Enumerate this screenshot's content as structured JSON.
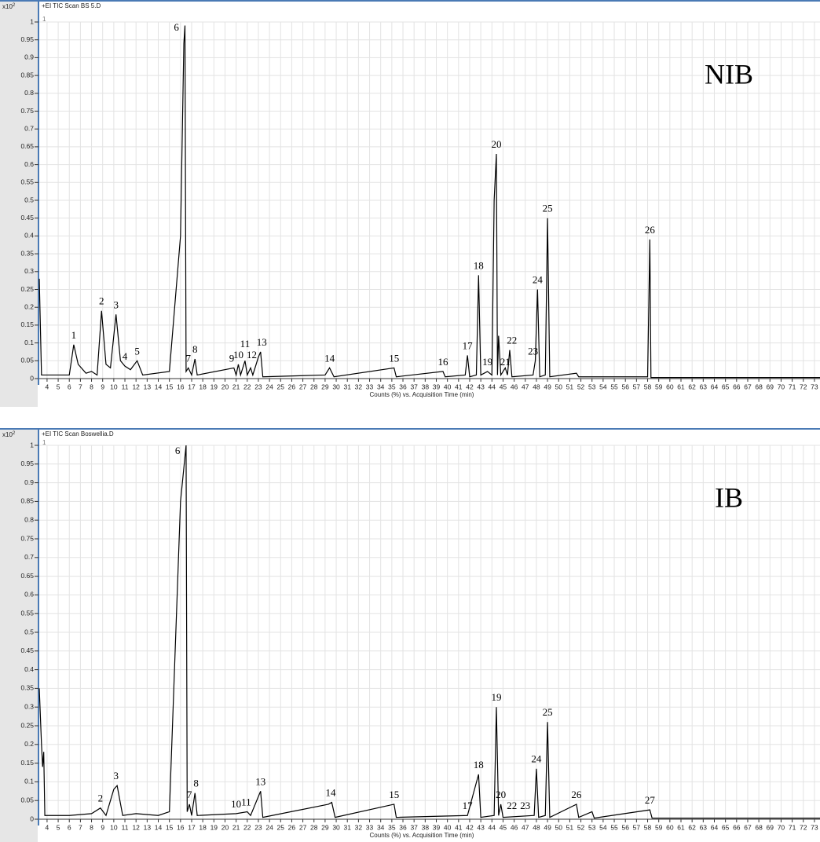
{
  "chart_data": [
    {
      "type": "line",
      "header": "+EI TIC Scan BS 5.D",
      "scale_label": "x10",
      "scale_exponent": "2",
      "trace_tag": "1",
      "label": "NIB",
      "xlabel": "Counts (%) vs. Acquisition Time (min)",
      "color": "#000000",
      "grid": true,
      "xlim": [
        3.3,
        73.5
      ],
      "ylim": [
        0,
        1
      ],
      "xticks": [
        4,
        5,
        6,
        7,
        8,
        9,
        10,
        11,
        12,
        13,
        14,
        15,
        16,
        17,
        18,
        19,
        20,
        21,
        22,
        23,
        24,
        25,
        26,
        27,
        28,
        29,
        30,
        31,
        32,
        33,
        34,
        35,
        36,
        37,
        38,
        39,
        40,
        41,
        42,
        43,
        44,
        45,
        46,
        47,
        48,
        49,
        50,
        51,
        52,
        53,
        54,
        55,
        56,
        57,
        58,
        59,
        60,
        61,
        62,
        63,
        64,
        65,
        66,
        67,
        68,
        69,
        70,
        71,
        72,
        73
      ],
      "yticks": [
        0,
        0.05,
        0.1,
        0.15,
        0.2,
        0.25,
        0.3,
        0.35,
        0.4,
        0.45,
        0.5,
        0.55,
        0.6,
        0.65,
        0.7,
        0.75,
        0.8,
        0.85,
        0.9,
        0.95,
        1
      ],
      "x": [
        3.3,
        3.5,
        6,
        6.4,
        6.8,
        7.5,
        8,
        8.5,
        8.9,
        9.3,
        9.7,
        10.2,
        10.6,
        11,
        11.5,
        12.1,
        12.6,
        15,
        16,
        16.3,
        16.4,
        16.5,
        16.7,
        17,
        17.3,
        17.5,
        20.8,
        21,
        21.2,
        21.4,
        21.8,
        22,
        22.3,
        22.5,
        23,
        23.2,
        23.4,
        29,
        29.4,
        29.8,
        35.2,
        35.4,
        39.6,
        39.8,
        41.6,
        41.8,
        42,
        42.6,
        42.8,
        43,
        43.6,
        44,
        44.2,
        44.4,
        44.5,
        44.6,
        44.8,
        45.2,
        45.4,
        45.6,
        45.8,
        47.7,
        47.9,
        48.1,
        48.3,
        48.8,
        49,
        49.2,
        51.6,
        51.8,
        58,
        58.2,
        58.3,
        73.5
      ],
      "values": [
        0.28,
        0.01,
        0.01,
        0.095,
        0.04,
        0.015,
        0.02,
        0.01,
        0.19,
        0.04,
        0.03,
        0.18,
        0.05,
        0.035,
        0.025,
        0.05,
        0.01,
        0.02,
        0.4,
        0.94,
        0.99,
        0.02,
        0.03,
        0.01,
        0.055,
        0.01,
        0.03,
        0.01,
        0.04,
        0.01,
        0.05,
        0.01,
        0.03,
        0.01,
        0.06,
        0.075,
        0.005,
        0.01,
        0.03,
        0.005,
        0.03,
        0.005,
        0.02,
        0.005,
        0.01,
        0.065,
        0.005,
        0.01,
        0.29,
        0.01,
        0.02,
        0.01,
        0.5,
        0.63,
        0.01,
        0.12,
        0.01,
        0.03,
        0.01,
        0.08,
        0.005,
        0.01,
        0.05,
        0.25,
        0.005,
        0.01,
        0.45,
        0.005,
        0.015,
        0.005,
        0.005,
        0.39,
        0.003,
        0.003
      ],
      "peak_labels": [
        {
          "text": "1",
          "x": 6.4,
          "y": 0.095
        },
        {
          "text": "2",
          "x": 8.9,
          "y": 0.19
        },
        {
          "text": "3",
          "x": 10.2,
          "y": 0.18
        },
        {
          "text": "4",
          "x": 11,
          "y": 0.035
        },
        {
          "text": "5",
          "x": 12.1,
          "y": 0.05
        },
        {
          "text": "6",
          "x": 16.2,
          "y": 0.99
        },
        {
          "text": "7",
          "x": 16.7,
          "y": 0.03
        },
        {
          "text": "8",
          "x": 17.3,
          "y": 0.055
        },
        {
          "text": "9",
          "x": 20.6,
          "y": 0.03
        },
        {
          "text": "10",
          "x": 21.2,
          "y": 0.04
        },
        {
          "text": "11",
          "x": 21.8,
          "y": 0.07
        },
        {
          "text": "12",
          "x": 22.4,
          "y": 0.04
        },
        {
          "text": "13",
          "x": 23.3,
          "y": 0.075
        },
        {
          "text": "14",
          "x": 29.4,
          "y": 0.03
        },
        {
          "text": "15",
          "x": 35.2,
          "y": 0.03
        },
        {
          "text": "16",
          "x": 39.6,
          "y": 0.02
        },
        {
          "text": "17",
          "x": 41.8,
          "y": 0.065
        },
        {
          "text": "18",
          "x": 42.8,
          "y": 0.29
        },
        {
          "text": "19",
          "x": 43.6,
          "y": 0.02
        },
        {
          "text": "20",
          "x": 44.4,
          "y": 0.63
        },
        {
          "text": "21",
          "x": 45.2,
          "y": 0.02
        },
        {
          "text": "22",
          "x": 45.8,
          "y": 0.08
        },
        {
          "text": "23",
          "x": 47.7,
          "y": 0.05
        },
        {
          "text": "24",
          "x": 48.1,
          "y": 0.25
        },
        {
          "text": "25",
          "x": 49,
          "y": 0.45
        },
        {
          "text": "26",
          "x": 58.2,
          "y": 0.39
        }
      ]
    },
    {
      "type": "line",
      "header": "+EI TIC Scan Boswellia.D",
      "scale_label": "x10",
      "scale_exponent": "2",
      "trace_tag": "1",
      "label": "IB",
      "xlabel": "Counts (%) vs. Acquisition Time (min)",
      "color": "#000000",
      "grid": true,
      "xlim": [
        3.3,
        73.5
      ],
      "ylim": [
        0,
        1
      ],
      "xticks": [
        4,
        5,
        6,
        7,
        8,
        9,
        10,
        11,
        12,
        13,
        14,
        15,
        16,
        17,
        18,
        19,
        20,
        21,
        22,
        23,
        24,
        25,
        26,
        27,
        28,
        29,
        30,
        31,
        32,
        33,
        34,
        35,
        36,
        37,
        38,
        39,
        40,
        41,
        42,
        43,
        44,
        45,
        46,
        47,
        48,
        49,
        50,
        51,
        52,
        53,
        54,
        55,
        56,
        57,
        58,
        59,
        60,
        61,
        62,
        63,
        64,
        65,
        66,
        67,
        68,
        69,
        70,
        71,
        72,
        73
      ],
      "yticks": [
        0,
        0.05,
        0.1,
        0.15,
        0.2,
        0.25,
        0.3,
        0.35,
        0.4,
        0.45,
        0.5,
        0.55,
        0.6,
        0.65,
        0.7,
        0.75,
        0.8,
        0.85,
        0.9,
        0.95,
        1
      ],
      "x": [
        3.3,
        3.5,
        3.6,
        3.7,
        3.8,
        6,
        8,
        8.8,
        9.3,
        10,
        10.3,
        10.8,
        12,
        14,
        15,
        16,
        16.5,
        16.6,
        16.8,
        17,
        17.3,
        17.5,
        21,
        22,
        22.3,
        23.2,
        23.4,
        29.3,
        29.6,
        29.9,
        35.2,
        35.4,
        41.8,
        42.8,
        43,
        44.2,
        44.4,
        44.6,
        44.8,
        45,
        47.8,
        48,
        48.2,
        48.8,
        49,
        49.2,
        51.6,
        51.8,
        53,
        53.2,
        58.2,
        58.4,
        73.5
      ],
      "values": [
        0.35,
        0.2,
        0.14,
        0.18,
        0.01,
        0.01,
        0.015,
        0.03,
        0.01,
        0.08,
        0.09,
        0.01,
        0.015,
        0.01,
        0.02,
        0.85,
        1,
        0.02,
        0.04,
        0.01,
        0.07,
        0.01,
        0.015,
        0.02,
        0.01,
        0.075,
        0.005,
        0.04,
        0.045,
        0.005,
        0.04,
        0.005,
        0.01,
        0.12,
        0.005,
        0.01,
        0.3,
        0.01,
        0.04,
        0.005,
        0.01,
        0.135,
        0.005,
        0.01,
        0.26,
        0.005,
        0.04,
        0.005,
        0.02,
        0.003,
        0.025,
        0.003,
        0.003
      ],
      "peak_labels": [
        {
          "text": "2",
          "x": 8.8,
          "y": 0.03
        },
        {
          "text": "3",
          "x": 10.2,
          "y": 0.09
        },
        {
          "text": "6",
          "x": 16.3,
          "y": 1
        },
        {
          "text": "7",
          "x": 16.8,
          "y": 0.04
        },
        {
          "text": "8",
          "x": 17.4,
          "y": 0.07
        },
        {
          "text": "10",
          "x": 21,
          "y": 0.015
        },
        {
          "text": "11",
          "x": 21.9,
          "y": 0.02
        },
        {
          "text": "13",
          "x": 23.2,
          "y": 0.075
        },
        {
          "text": "14",
          "x": 29.5,
          "y": 0.045
        },
        {
          "text": "15",
          "x": 35.2,
          "y": 0.04
        },
        {
          "text": "17",
          "x": 41.8,
          "y": 0.01
        },
        {
          "text": "18",
          "x": 42.8,
          "y": 0.12
        },
        {
          "text": "19",
          "x": 44.4,
          "y": 0.3
        },
        {
          "text": "20",
          "x": 44.8,
          "y": 0.04
        },
        {
          "text": "22",
          "x": 45.8,
          "y": 0.01
        },
        {
          "text": "23",
          "x": 47,
          "y": 0.01
        },
        {
          "text": "24",
          "x": 48,
          "y": 0.135
        },
        {
          "text": "25",
          "x": 49,
          "y": 0.26
        },
        {
          "text": "26",
          "x": 51.6,
          "y": 0.04
        },
        {
          "text": "27",
          "x": 58.2,
          "y": 0.025
        }
      ]
    }
  ]
}
